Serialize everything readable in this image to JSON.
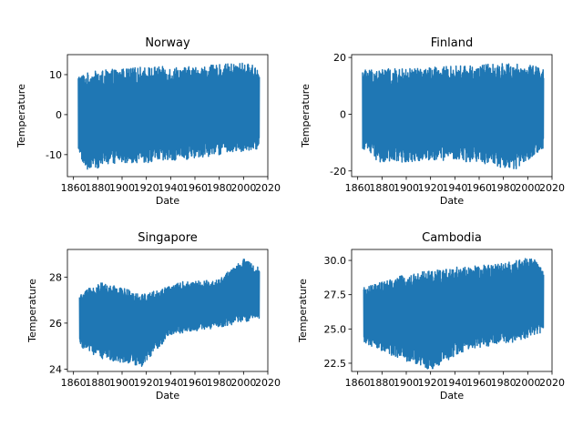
{
  "figure": {
    "suptitle": "",
    "colors": {
      "series": "#1f77b4",
      "axis": "#000000"
    }
  },
  "chart_data": [
    {
      "type": "line",
      "title": "Norway",
      "xlabel": "Date",
      "ylabel": "Temperature",
      "xlim": [
        1855,
        2020
      ],
      "ylim": [
        -15.5,
        15
      ],
      "xticks": [
        1860,
        1880,
        1900,
        1920,
        1940,
        1960,
        1980,
        2000,
        2020
      ],
      "yticks": [
        -10,
        0,
        10
      ],
      "series": [
        {
          "values_summary": "monthly mean temperature, seasonal oscillation",
          "x_range": [
            1864,
            2013
          ],
          "low_envelope": [
            [
              1864,
              -9
            ],
            [
              1870,
              -14
            ],
            [
              1900,
              -12
            ],
            [
              1940,
              -12
            ],
            [
              1980,
              -10
            ],
            [
              2013,
              -9
            ]
          ],
          "high_envelope": [
            [
              1864,
              10
            ],
            [
              1880,
              11
            ],
            [
              1920,
              12
            ],
            [
              1960,
              12
            ],
            [
              2000,
              13
            ],
            [
              2013,
              12
            ]
          ]
        }
      ],
      "grid": false
    },
    {
      "type": "line",
      "title": "Finland",
      "xlabel": "Date",
      "ylabel": "Temperature",
      "xlim": [
        1855,
        2020
      ],
      "ylim": [
        -22,
        21
      ],
      "xticks": [
        1860,
        1880,
        1900,
        1920,
        1940,
        1960,
        1980,
        2000,
        2020
      ],
      "yticks": [
        -20,
        0,
        20
      ],
      "series": [
        {
          "values_summary": "monthly mean temperature, seasonal oscillation",
          "x_range": [
            1864,
            2013
          ],
          "low_envelope": [
            [
              1864,
              -12
            ],
            [
              1880,
              -18
            ],
            [
              1920,
              -16
            ],
            [
              1960,
              -17
            ],
            [
              1990,
              -20
            ],
            [
              2013,
              -12
            ]
          ],
          "high_envelope": [
            [
              1864,
              16
            ],
            [
              1900,
              16
            ],
            [
              1940,
              17
            ],
            [
              1980,
              18
            ],
            [
              2013,
              17
            ]
          ]
        }
      ],
      "grid": false
    },
    {
      "type": "line",
      "title": "Singapore",
      "xlabel": "Date",
      "ylabel": "Temperature",
      "xlim": [
        1855,
        2020
      ],
      "ylim": [
        23.9,
        29.2
      ],
      "xticks": [
        1860,
        1880,
        1900,
        1920,
        1940,
        1960,
        1980,
        2000,
        2020
      ],
      "yticks": [
        24,
        26,
        28
      ],
      "series": [
        {
          "values_summary": "monthly mean temperature, rising trend",
          "x_range": [
            1865,
            2013
          ],
          "low_envelope": [
            [
              1865,
              25.0
            ],
            [
              1880,
              24.5
            ],
            [
              1917,
              24.1
            ],
            [
              1940,
              25.5
            ],
            [
              1980,
              25.8
            ],
            [
              2013,
              26.2
            ]
          ],
          "high_envelope": [
            [
              1865,
              27.2
            ],
            [
              1880,
              27.8
            ],
            [
              1920,
              27.3
            ],
            [
              1950,
              27.8
            ],
            [
              1980,
              27.9
            ],
            [
              2000,
              28.8
            ],
            [
              2013,
              28.4
            ]
          ]
        }
      ],
      "grid": false
    },
    {
      "type": "line",
      "title": "Cambodia",
      "xlabel": "Date",
      "ylabel": "Temperature",
      "xlim": [
        1855,
        2020
      ],
      "ylim": [
        21.9,
        30.8
      ],
      "xticks": [
        1860,
        1880,
        1900,
        1920,
        1940,
        1960,
        1980,
        2000,
        2020
      ],
      "yticks": [
        22.5,
        25.0,
        27.5,
        30.0
      ],
      "yticklabels": [
        "22.5",
        "25.0",
        "27.5",
        "30.0"
      ],
      "series": [
        {
          "values_summary": "monthly mean temperature, seasonal oscillation",
          "x_range": [
            1865,
            2013
          ],
          "low_envelope": [
            [
              1865,
              24.0
            ],
            [
              1890,
              23.0
            ],
            [
              1920,
              22.0
            ],
            [
              1950,
              23.5
            ],
            [
              1990,
              24.0
            ],
            [
              2013,
              24.8
            ]
          ],
          "high_envelope": [
            [
              1865,
              28.0
            ],
            [
              1900,
              29.0
            ],
            [
              1940,
              29.5
            ],
            [
              1980,
              29.8
            ],
            [
              2005,
              30.3
            ],
            [
              2013,
              29.2
            ]
          ]
        }
      ],
      "grid": false
    }
  ]
}
